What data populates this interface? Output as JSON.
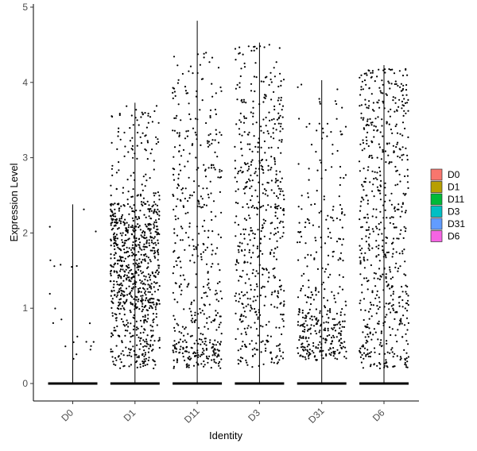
{
  "chart_data": {
    "type": "violin-jitter",
    "title": "",
    "xlabel": "Identity",
    "ylabel": "Expression Level",
    "categories": [
      "D0",
      "D1",
      "D11",
      "D3",
      "D31",
      "D6"
    ],
    "ylim": [
      -0.25,
      5
    ],
    "yticks": [
      0,
      1,
      2,
      3,
      4,
      5
    ],
    "grid": false,
    "legend_position": "right",
    "legend": [
      {
        "name": "D0",
        "color": "#F8766D"
      },
      {
        "name": "D1",
        "color": "#B79F00"
      },
      {
        "name": "D11",
        "color": "#00BA38"
      },
      {
        "name": "D3",
        "color": "#00BFC4"
      },
      {
        "name": "D31",
        "color": "#619CFF"
      },
      {
        "name": "D6",
        "color": "#F564E3"
      }
    ],
    "max_values": [
      2.38,
      3.73,
      4.82,
      4.53,
      4.03,
      4.23
    ],
    "distributions": [
      {
        "name": "D0",
        "n": 22,
        "seed": 11,
        "bands": [
          [
            0.3,
            1.0,
            0.55
          ],
          [
            1.0,
            2.4,
            0.45
          ]
        ]
      },
      {
        "name": "D1",
        "n": 900,
        "seed": 23,
        "bands": [
          [
            0.2,
            1.0,
            0.2
          ],
          [
            1.0,
            2.4,
            0.68
          ],
          [
            2.4,
            3.7,
            0.12
          ]
        ]
      },
      {
        "name": "D11",
        "n": 480,
        "seed": 37,
        "bands": [
          [
            0.2,
            0.6,
            0.3
          ],
          [
            0.6,
            3.6,
            0.62
          ],
          [
            3.6,
            4.4,
            0.08
          ]
        ]
      },
      {
        "name": "D3",
        "n": 560,
        "seed": 41,
        "bands": [
          [
            0.2,
            1.0,
            0.22
          ],
          [
            1.0,
            3.8,
            0.7
          ],
          [
            3.8,
            4.5,
            0.08
          ]
        ]
      },
      {
        "name": "D31",
        "n": 380,
        "seed": 53,
        "bands": [
          [
            0.3,
            1.0,
            0.55
          ],
          [
            1.0,
            2.6,
            0.33
          ],
          [
            2.6,
            4.0,
            0.12
          ]
        ]
      },
      {
        "name": "D6",
        "n": 620,
        "seed": 67,
        "bands": [
          [
            0.2,
            1.0,
            0.22
          ],
          [
            1.0,
            3.6,
            0.63
          ],
          [
            3.6,
            4.2,
            0.15
          ]
        ]
      }
    ]
  }
}
